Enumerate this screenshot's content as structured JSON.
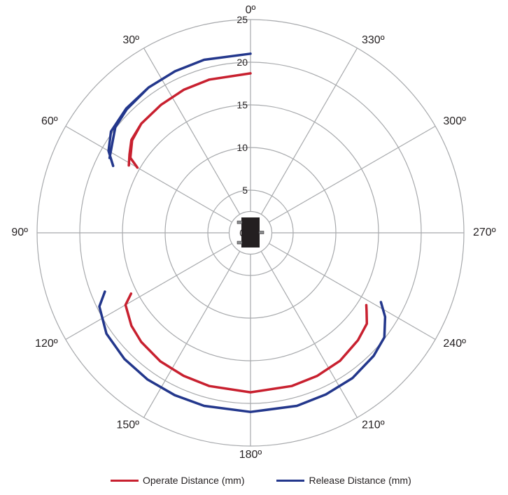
{
  "chart_data": {
    "type": "polar-line",
    "angle_direction": "counterclockwise",
    "zero_angle": "top",
    "angle_labels": [
      "0º",
      "30º",
      "60º",
      "90º",
      "120º",
      "150º",
      "180º",
      "210º",
      "240º",
      "270º",
      "300º",
      "330º"
    ],
    "radial_ticks": [
      "0",
      "5",
      "10",
      "15",
      "20",
      "25"
    ],
    "radial_tick_values": [
      0,
      5,
      10,
      15,
      20,
      25
    ],
    "rlim": [
      0,
      25
    ],
    "inner_circle_radius": 2.5,
    "grid": true,
    "legend_position": "bottom",
    "series": [
      {
        "name": "Operate Distance (mm)",
        "color": "#c8202f",
        "segments": [
          [
            [
              -300,
              15.3
            ],
            [
              -302,
              16.6
            ],
            [
              -308,
              17.6
            ],
            [
              -315,
              18.1
            ],
            [
              -325,
              18.3
            ],
            [
              -335,
              18.5
            ],
            [
              -345,
              18.6
            ],
            [
              0,
              18.7
            ],
            [
              15,
              18.6
            ],
            [
              25,
              18.5
            ],
            [
              35,
              18.3
            ],
            [
              45,
              18.1
            ],
            [
              52,
              17.7
            ],
            [
              57,
              16.9
            ],
            [
              61,
              16.3
            ]
          ],
          [
            [
              117,
              15.7
            ],
            [
              120,
              16.9
            ],
            [
              128,
              17.7
            ],
            [
              135,
              18.1
            ],
            [
              145,
              18.4
            ],
            [
              155,
              18.5
            ],
            [
              165,
              18.6
            ],
            [
              180,
              18.7
            ],
            [
              195,
              18.6
            ],
            [
              205,
              18.5
            ],
            [
              215,
              18.3
            ],
            [
              225,
              17.8
            ],
            [
              232,
              17.3
            ],
            [
              236,
              16.4
            ],
            [
              238,
              16.0
            ]
          ]
        ]
      },
      {
        "name": "Release Distance (mm)",
        "color": "#23378c",
        "segments": [
          [
            [
              -296,
              17.9
            ],
            [
              -300,
              19.2
            ],
            [
              -306,
              20.2
            ],
            [
              -315,
              20.6
            ],
            [
              -325,
              20.8
            ],
            [
              -335,
              20.9
            ],
            [
              -345,
              21.0
            ],
            [
              0,
              21.0
            ],
            [
              15,
              21.0
            ],
            [
              25,
              20.9
            ],
            [
              35,
              20.8
            ],
            [
              45,
              20.5
            ],
            [
              52,
              20.1
            ],
            [
              57,
              19.3
            ],
            [
              62,
              18.7
            ]
          ],
          [
            [
              112,
              18.4
            ],
            [
              116,
              19.7
            ],
            [
              125,
              20.6
            ],
            [
              135,
              20.9
            ],
            [
              145,
              21.0
            ],
            [
              155,
              21.0
            ],
            [
              165,
              21.0
            ],
            [
              180,
              21.0
            ],
            [
              195,
              21.0
            ],
            [
              205,
              20.9
            ],
            [
              215,
              20.8
            ],
            [
              225,
              20.4
            ],
            [
              232,
              19.9
            ],
            [
              238,
              18.6
            ],
            [
              242,
              17.3
            ]
          ]
        ]
      }
    ]
  },
  "legend": {
    "operate_label": "Operate Distance (mm)",
    "release_label": "Release Distance (mm)"
  },
  "colors": {
    "grid": "#a7a9ac",
    "text": "#231f20",
    "sensor": "#231f20"
  }
}
